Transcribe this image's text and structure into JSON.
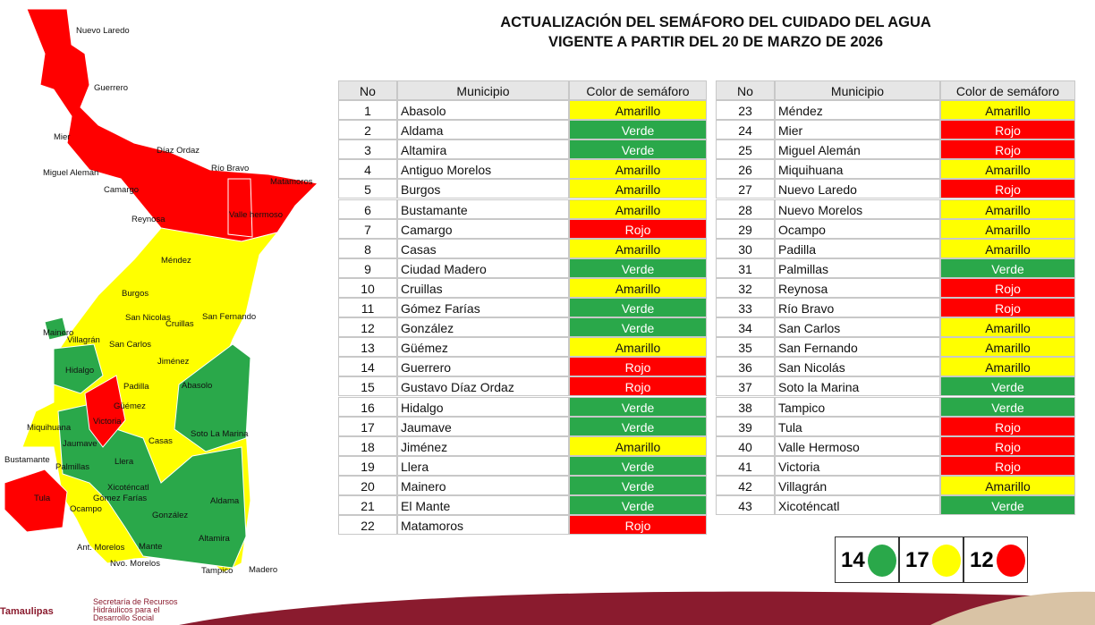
{
  "header": {
    "title": [
      "ACTUALIZACIÓN DEL SEMÁFORO DEL CUIDADO DEL AGUA",
      "VIGENTE A PARTIR DEL 20 DE MARZO DE 2026"
    ]
  },
  "table": {
    "columns": [
      "No",
      "Municipio",
      "Color de semáforo"
    ],
    "colors": {
      "Amarillo": "#ffff00",
      "Verde": "#2aa84a",
      "Rojo": "#ff0000"
    },
    "rows": [
      [
        1,
        "Abasolo",
        "Amarillo"
      ],
      [
        2,
        "Aldama",
        "Verde"
      ],
      [
        3,
        "Altamira",
        "Verde"
      ],
      [
        4,
        "Antiguo Morelos",
        "Amarillo"
      ],
      [
        5,
        "Burgos",
        "Amarillo"
      ],
      [
        6,
        "Bustamante",
        "Amarillo"
      ],
      [
        7,
        "Camargo",
        "Rojo"
      ],
      [
        8,
        "Casas",
        "Amarillo"
      ],
      [
        9,
        "Ciudad Madero",
        "Verde"
      ],
      [
        10,
        "Cruillas",
        "Amarillo"
      ],
      [
        11,
        "Gómez Farías",
        "Verde"
      ],
      [
        12,
        "González",
        "Verde"
      ],
      [
        13,
        "Güémez",
        "Amarillo"
      ],
      [
        14,
        "Guerrero",
        "Rojo"
      ],
      [
        15,
        "Gustavo Díaz Ordaz",
        "Rojo"
      ],
      [
        16,
        "Hidalgo",
        "Verde"
      ],
      [
        17,
        "Jaumave",
        "Verde"
      ],
      [
        18,
        "Jiménez",
        "Amarillo"
      ],
      [
        19,
        "Llera",
        "Verde"
      ],
      [
        20,
        "Mainero",
        "Verde"
      ],
      [
        21,
        "El Mante",
        "Verde"
      ],
      [
        22,
        "Matamoros",
        "Rojo"
      ],
      [
        23,
        "Méndez",
        "Amarillo"
      ],
      [
        24,
        "Mier",
        "Rojo"
      ],
      [
        25,
        "Miguel Alemán",
        "Rojo"
      ],
      [
        26,
        "Miquihuana",
        "Amarillo"
      ],
      [
        27,
        "Nuevo Laredo",
        "Rojo"
      ],
      [
        28,
        "Nuevo Morelos",
        "Amarillo"
      ],
      [
        29,
        "Ocampo",
        "Amarillo"
      ],
      [
        30,
        "Padilla",
        "Amarillo"
      ],
      [
        31,
        "Palmillas",
        "Verde"
      ],
      [
        32,
        "Reynosa",
        "Rojo"
      ],
      [
        33,
        "Río Bravo",
        "Rojo"
      ],
      [
        34,
        "San Carlos",
        "Amarillo"
      ],
      [
        35,
        "San Fernando",
        "Amarillo"
      ],
      [
        36,
        "San Nicolás",
        "Amarillo"
      ],
      [
        37,
        "Soto la Marina",
        "Verde"
      ],
      [
        38,
        "Tampico",
        "Verde"
      ],
      [
        39,
        "Tula",
        "Rojo"
      ],
      [
        40,
        "Valle Hermoso",
        "Rojo"
      ],
      [
        41,
        "Victoria",
        "Rojo"
      ],
      [
        42,
        "Villagrán",
        "Amarillo"
      ],
      [
        43,
        "Xicoténcatl",
        "Verde"
      ]
    ]
  },
  "legend": [
    {
      "count": 14,
      "color": "#2aa84a"
    },
    {
      "count": 17,
      "color": "#ffff00"
    },
    {
      "count": 12,
      "color": "#ff0000"
    }
  ],
  "map": {
    "labels": [
      "Nuevo Laredo",
      "Guerrero",
      "Mier",
      "Díaz Ordaz",
      "Miguel Alemán",
      "Río Bravo",
      "Matamoros",
      "Camargo",
      "Reynosa",
      "Valle hermoso",
      "Méndez",
      "Burgos",
      "San Nicolas",
      "Cruillas",
      "San Fernando",
      "Mainero",
      "Villagrán",
      "San Carlos",
      "Hidalgo",
      "Jiménez",
      "Padilla",
      "Abasolo",
      "Güémez",
      "Victoria",
      "Miquihuana",
      "Jaumave",
      "Casas",
      "Soto La Marina",
      "Bustamante",
      "Palmillas",
      "Llera",
      "Xicoténcatl",
      "Gómez Farías",
      "Tula",
      "Ocampo",
      "González",
      "Aldama",
      "Ant. Morelos",
      "Nvo. Morelos",
      "Mante",
      "Altamira",
      "Tampico",
      "Madero"
    ]
  },
  "footer": [
    "Tamaulipas",
    "Secretaría de Recursos Hidráulicos para el Desarrollo Social"
  ]
}
